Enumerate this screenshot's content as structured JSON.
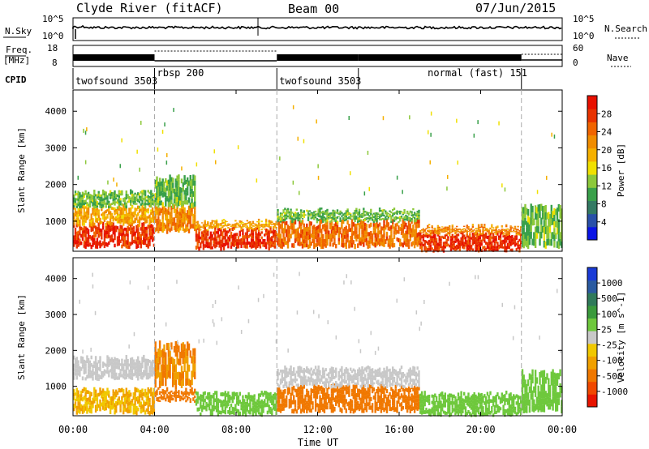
{
  "header": {
    "station": "Clyde River (fitACF)",
    "beam": "Beam 00",
    "date": "07/Jun/2015"
  },
  "noise_panel": {
    "left_label": "N.Sky",
    "left_ticks": [
      "10^5",
      "10^0"
    ],
    "right_label": "N.Search",
    "right_ticks": [
      "10^5",
      "10^0"
    ]
  },
  "freq_panel": {
    "left_label_1": "Freq.",
    "left_label_2": "[MHz]",
    "left_ticks": [
      "18",
      "8"
    ],
    "right_label": "Nave",
    "right_ticks": [
      "60",
      "0"
    ]
  },
  "cpid_panel": {
    "label": "CPID",
    "segments": [
      {
        "name": "twofsound 3503",
        "start_h": 0,
        "end_h": 4
      },
      {
        "name": "rbsp 200",
        "start_h": 4,
        "end_h": 10
      },
      {
        "name": "twofsound 3503",
        "start_h": 10,
        "end_h": 14
      },
      {
        "name": "normal (fast) 151",
        "start_h": 14,
        "end_h": 22
      }
    ]
  },
  "x_axis": {
    "label": "Time UT",
    "range_h": [
      0,
      24
    ],
    "tick_labels": [
      "00:00",
      "04:00",
      "08:00",
      "12:00",
      "16:00",
      "20:00",
      "00:00"
    ],
    "tick_values_h": [
      0,
      4,
      8,
      12,
      16,
      20,
      24
    ],
    "dashed_markers_h": [
      4,
      10,
      22
    ]
  },
  "chart_data": [
    {
      "type": "heatmap",
      "title": "",
      "parameter": "Power",
      "ylabel": "Slant Range [km]",
      "ylim": [
        180,
        4580
      ],
      "y_ticks": [
        "1000",
        "2000",
        "3000",
        "4000"
      ],
      "y_tick_values": [
        1000,
        2000,
        3000,
        4000
      ],
      "colorbar_label": "Power [dB]",
      "colorbar_ticks": [
        "4",
        "8",
        "12",
        "16",
        "20",
        "24",
        "28"
      ],
      "colorbar_tick_values": [
        4,
        8,
        12,
        16,
        20,
        24,
        28
      ],
      "colorbar_range": [
        0,
        32
      ],
      "colorbar_colors": [
        "#0a14e6",
        "#2950a8",
        "#337a63",
        "#39a04a",
        "#8cc83a",
        "#f0e000",
        "#f5b000",
        "#f08c00",
        "#f06400",
        "#e83200",
        "#e81000"
      ],
      "regions": [
        {
          "t0": 0,
          "t1": 4,
          "r0": 300,
          "r1": 900,
          "value": 28
        },
        {
          "t0": 0,
          "t1": 4,
          "r0": 900,
          "r1": 1400,
          "value": 20
        },
        {
          "t0": 0,
          "t1": 4,
          "r0": 1400,
          "r1": 1800,
          "value": 12
        },
        {
          "t0": 4,
          "t1": 6,
          "r0": 700,
          "r1": 1400,
          "value": 22
        },
        {
          "t0": 4,
          "t1": 6,
          "r0": 1400,
          "r1": 2200,
          "value": 12
        },
        {
          "t0": 6,
          "t1": 10,
          "r0": 250,
          "r1": 800,
          "value": 28
        },
        {
          "t0": 6,
          "t1": 10,
          "r0": 800,
          "r1": 1000,
          "value": 20
        },
        {
          "t0": 10,
          "t1": 17,
          "r0": 300,
          "r1": 1000,
          "value": 24
        },
        {
          "t0": 10,
          "t1": 17,
          "r0": 1000,
          "r1": 1300,
          "value": 12
        },
        {
          "t0": 17,
          "t1": 22,
          "r0": 200,
          "r1": 650,
          "value": 28
        },
        {
          "t0": 17,
          "t1": 22,
          "r0": 650,
          "r1": 850,
          "value": 22
        },
        {
          "t0": 22,
          "t1": 24,
          "r0": 300,
          "r1": 1400,
          "value": 12
        }
      ]
    },
    {
      "type": "heatmap",
      "title": "",
      "parameter": "Velocity",
      "ylabel": "Slant Range [km]",
      "ylim": [
        180,
        4580
      ],
      "y_ticks": [
        "1000",
        "2000",
        "3000",
        "4000"
      ],
      "y_tick_values": [
        1000,
        2000,
        3000,
        4000
      ],
      "colorbar_label": "Velocity [m s^-1]",
      "colorbar_ticks": [
        "1000",
        "500",
        "100",
        "25",
        "-25",
        "-100",
        "-500",
        "-1000"
      ],
      "colorbar_colors": [
        "#1a3bd6",
        "#2a5aa0",
        "#2f7a5a",
        "#3a9a3c",
        "#6ec83c",
        "#c8c8c8",
        "#f0c800",
        "#f0a000",
        "#f07800",
        "#f04800",
        "#e81400"
      ],
      "regions": [
        {
          "t0": 0,
          "t1": 4,
          "r0": 250,
          "r1": 900,
          "value": -100
        },
        {
          "t0": 0,
          "t1": 4,
          "r0": 1200,
          "r1": 1800,
          "value": 0
        },
        {
          "t0": 4,
          "t1": 6,
          "r0": 600,
          "r1": 900,
          "value": -300
        },
        {
          "t0": 4,
          "t1": 6,
          "r0": 1000,
          "r1": 2200,
          "value": -200
        },
        {
          "t0": 6,
          "t1": 10,
          "r0": 200,
          "r1": 800,
          "value": 60
        },
        {
          "t0": 10,
          "t1": 17,
          "r0": 300,
          "r1": 1000,
          "value": -300
        },
        {
          "t0": 10,
          "t1": 17,
          "r0": 1000,
          "r1": 1500,
          "value": 0
        },
        {
          "t0": 17,
          "t1": 22,
          "r0": 200,
          "r1": 800,
          "value": 50
        },
        {
          "t0": 22,
          "t1": 24,
          "r0": 300,
          "r1": 1400,
          "value": 80
        }
      ]
    }
  ]
}
